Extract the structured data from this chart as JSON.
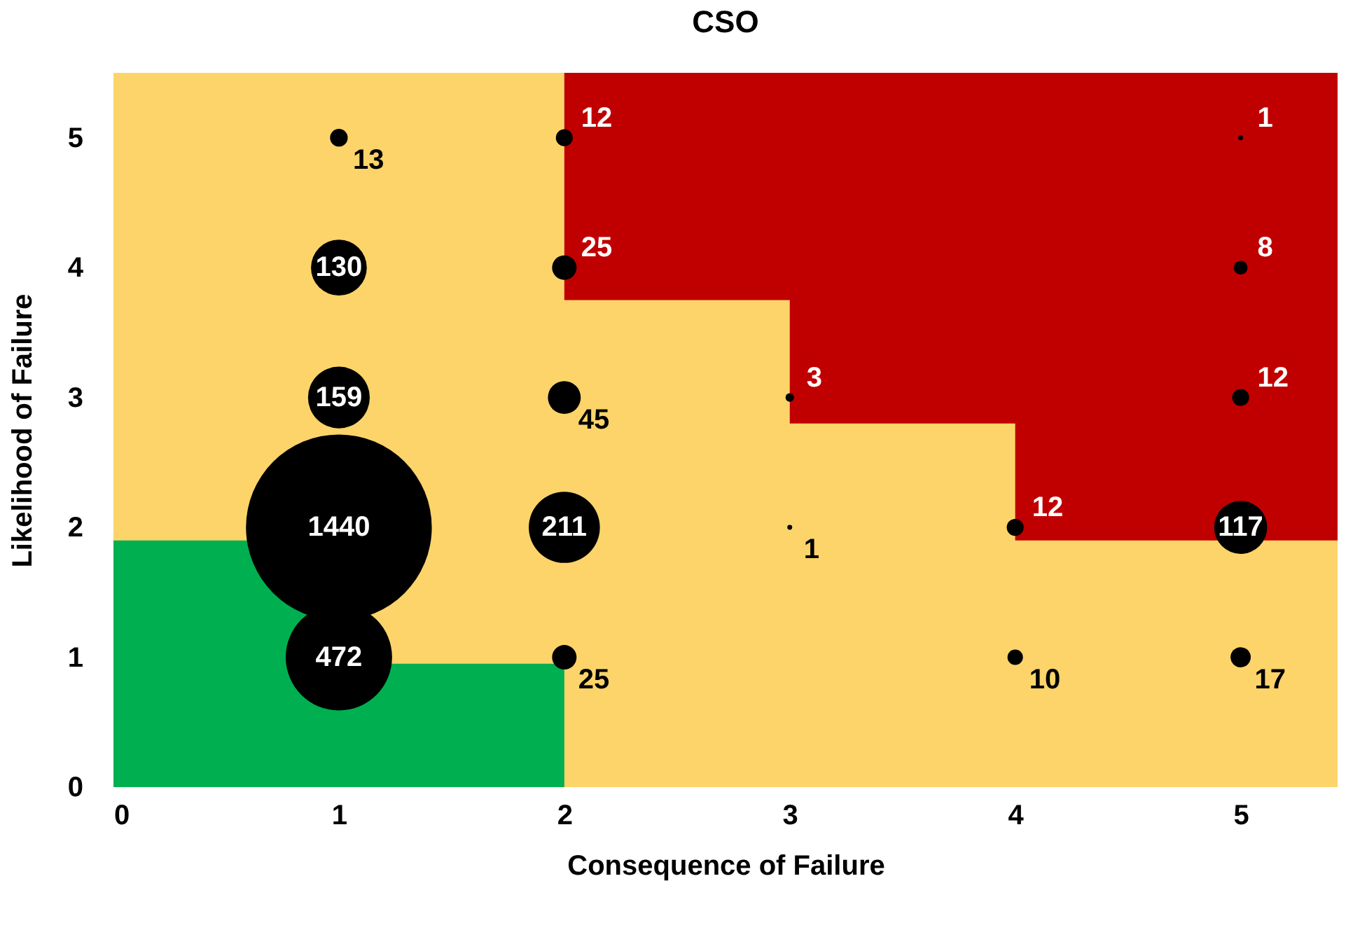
{
  "chart_data": {
    "type": "bubble",
    "title": "CSO",
    "xlabel": "Consequence of Failure",
    "ylabel": "Likelihood of Failure",
    "xlim": [
      0,
      5.43
    ],
    "ylim": [
      0,
      5.5
    ],
    "xticks": [
      0,
      1,
      2,
      3,
      4,
      5
    ],
    "yticks": [
      0,
      1,
      2,
      3,
      4,
      5
    ],
    "grid": false,
    "legend": false,
    "series": [
      {
        "color": "#000000",
        "x": [
          1,
          1,
          1,
          1,
          1,
          2,
          2,
          2,
          2,
          2,
          3,
          3,
          4,
          4,
          5,
          5,
          5,
          5,
          5
        ],
        "values": [
          5,
          4,
          3,
          2,
          1,
          5,
          4,
          3,
          2,
          1,
          3,
          2,
          2,
          1,
          5,
          4,
          3,
          2,
          1
        ],
        "sizes": [
          13,
          130,
          159,
          1440,
          472,
          12,
          25,
          45,
          211,
          25,
          3,
          1,
          12,
          10,
          1,
          8,
          12,
          117,
          17
        ],
        "value_labels": [
          "13",
          "130",
          "159",
          "1440",
          "472",
          "12",
          "25",
          "45",
          "211",
          "25",
          "3",
          "1",
          "12",
          "10",
          "1",
          "8",
          "12",
          "117",
          "17"
        ]
      }
    ]
  }
}
